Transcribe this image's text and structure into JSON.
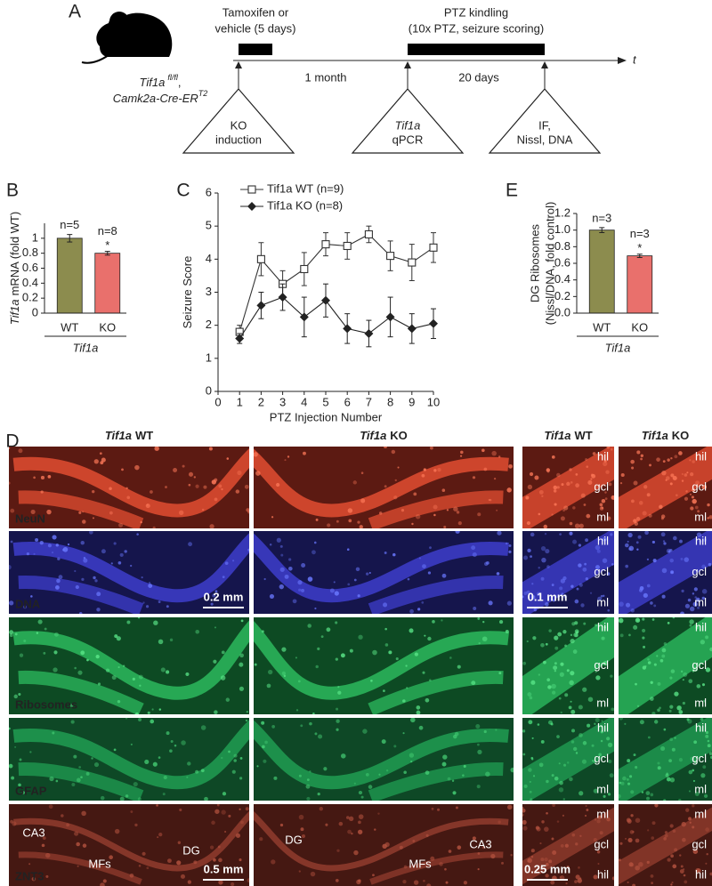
{
  "panel_a": {
    "label": "A",
    "mouse": {
      "gene": "Tif1a",
      "allele": "fl/fl",
      "sep": ",",
      "driver": "Camk2a-Cre-ER",
      "driver_sup": "T2"
    },
    "treatments": [
      {
        "lines": [
          "Tamoxifen or",
          "vehicle (5 days)"
        ]
      },
      {
        "lines": [
          "PTZ kindling",
          "(10x PTZ, seizure scoring)"
        ]
      }
    ],
    "intervals": [
      "1 month",
      "20 days"
    ],
    "time_axis": "t",
    "steps": [
      {
        "lines": [
          "KO",
          "induction"
        ],
        "italic_first": false
      },
      {
        "lines": [
          "Tif1a",
          "qPCR"
        ],
        "italic_first": true
      },
      {
        "lines": [
          "IF,",
          "Nissl, DNA"
        ],
        "italic_first": false
      }
    ]
  },
  "chart_data": [
    {
      "type": "bar",
      "panel": "B",
      "ylabel_gene": "Tif1a",
      "ylabel": "mRNA  (fold WT)",
      "categories": [
        "WT",
        "KO"
      ],
      "values": [
        1.0,
        0.8
      ],
      "errors": [
        0.05,
        0.025
      ],
      "colors": [
        "#8c8c4e",
        "#e9706c"
      ],
      "n_labels": [
        "n=5",
        "n=8"
      ],
      "significance": [
        null,
        "*"
      ],
      "xgroup": "Tif1a",
      "ylim": [
        0,
        1.2
      ],
      "yticks": [
        0,
        0.2,
        0.4,
        0.6,
        0.8,
        1
      ]
    },
    {
      "type": "line",
      "panel": "C",
      "ylabel": "Seizure Score",
      "xlabel": "PTZ Injection Number",
      "x": [
        1,
        2,
        3,
        4,
        5,
        6,
        7,
        8,
        9,
        10
      ],
      "series": [
        {
          "name": "Tif1a WT (n=9)",
          "color": "#333333",
          "marker": "open-square",
          "values": [
            1.8,
            4.0,
            3.25,
            3.7,
            4.45,
            4.4,
            4.75,
            4.1,
            3.9,
            4.35
          ],
          "errors": [
            0.2,
            0.5,
            0.4,
            0.5,
            0.35,
            0.4,
            0.25,
            0.45,
            0.55,
            0.45
          ]
        },
        {
          "name": "Tif1a KO (n=8)",
          "color": "#222222",
          "marker": "diamond",
          "values": [
            1.6,
            2.6,
            2.85,
            2.25,
            2.75,
            1.9,
            1.75,
            2.25,
            1.9,
            2.05
          ],
          "errors": [
            0.15,
            0.4,
            0.4,
            0.6,
            0.5,
            0.45,
            0.4,
            0.6,
            0.45,
            0.45
          ]
        }
      ],
      "xlim": [
        0,
        10
      ],
      "xticks": [
        0,
        1,
        2,
        3,
        4,
        5,
        6,
        7,
        8,
        9,
        10
      ],
      "ylim": [
        0,
        6
      ],
      "yticks": [
        0,
        1,
        2,
        3,
        4,
        5,
        6
      ]
    },
    {
      "type": "bar",
      "panel": "E",
      "ylabel": [
        "DG Ribosomes",
        "(Nissl/DNA, fold control)"
      ],
      "categories": [
        "WT",
        "KO"
      ],
      "values": [
        1.0,
        0.69
      ],
      "errors": [
        0.03,
        0.02
      ],
      "colors": [
        "#8c8c4e",
        "#e9706c"
      ],
      "n_labels": [
        "n=3",
        "n=3"
      ],
      "significance": [
        null,
        "*"
      ],
      "xgroup": "Tif1a",
      "ylim": [
        0,
        1.2
      ],
      "yticks": [
        {
          "value": 0,
          "label": "0.0"
        },
        0.2,
        0.4,
        0.6,
        0.8,
        {
          "value": 1,
          "label": "1.0"
        },
        1.2
      ]
    }
  ],
  "panel_d": {
    "label": "D",
    "columns": [
      {
        "gene": "Tif1a",
        "genotype": "WT"
      },
      {
        "gene": "Tif1a",
        "genotype": "KO"
      },
      {
        "gene": "Tif1a",
        "genotype": "WT"
      },
      {
        "gene": "Tif1a",
        "genotype": "KO"
      }
    ],
    "rows": [
      {
        "stain": "NeuN",
        "color": "#f26b5b",
        "layers": [
          "hil",
          "gcl",
          "ml"
        ]
      },
      {
        "stain": "DNA",
        "color": "#2e8fe6",
        "layers": [
          "hil",
          "gcl",
          "ml"
        ],
        "scale_overview": "0.2 mm",
        "scale_zoom": "0.1 mm"
      },
      {
        "stain": "Ribosomes",
        "color": "#c2d23e",
        "layers": [
          "hil",
          "gcl",
          "ml"
        ]
      },
      {
        "stain": "GFAP",
        "color": "#c2d23e",
        "layers": [
          "hil",
          "gcl",
          "ml"
        ]
      },
      {
        "stain": "ZNT3",
        "color": "#e5463a",
        "layers": [
          "ml",
          "gcl",
          "hil"
        ],
        "overview_labels_wt": [
          "CA3",
          "MFs",
          "DG"
        ],
        "overview_labels_ko": [
          "DG",
          "MFs",
          "CA3"
        ],
        "scale_overview": "0.5 mm",
        "scale_zoom": "0.25 mm"
      }
    ]
  }
}
